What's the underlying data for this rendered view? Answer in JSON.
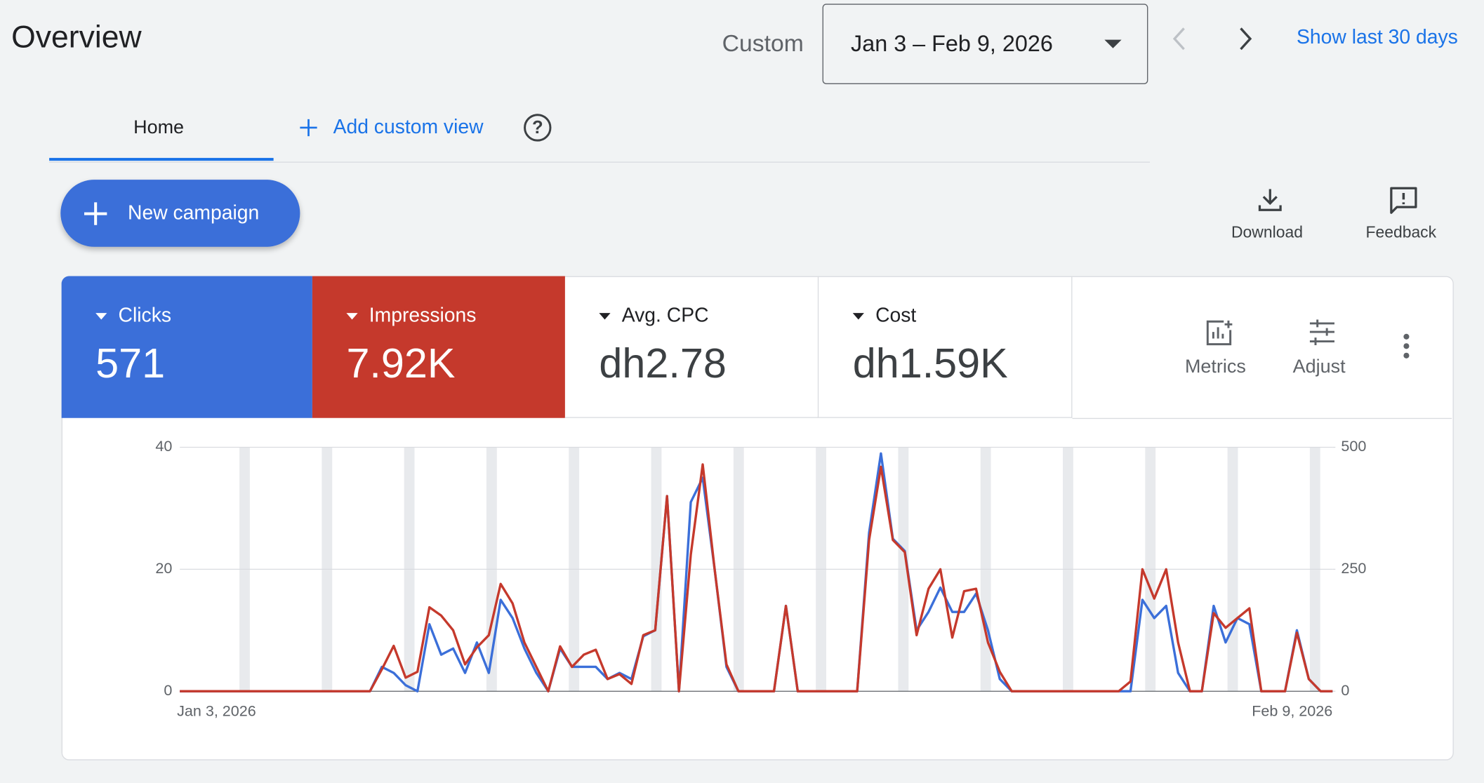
{
  "header": {
    "title": "Overview",
    "range_label": "Custom",
    "date_range": "Jan 3 – Feb 9, 2026",
    "show_last": "Show last 30 days"
  },
  "tabs": {
    "home": "Home",
    "add": "Add custom view"
  },
  "actions": {
    "new_campaign": "New campaign",
    "download": "Download",
    "feedback": "Feedback"
  },
  "scorecards": [
    {
      "label": "Clicks",
      "value": "571"
    },
    {
      "label": "Impressions",
      "value": "7.92K"
    },
    {
      "label": "Avg. CPC",
      "value": "dh2.78"
    },
    {
      "label": "Cost",
      "value": "dh1.59K"
    }
  ],
  "tools": {
    "metrics": "Metrics",
    "adjust": "Adjust"
  },
  "chart_data": {
    "type": "line",
    "categories": [
      "Jan 3, 2026",
      null,
      null,
      null,
      null,
      null,
      null,
      null,
      null,
      null,
      null,
      null,
      null,
      null,
      null,
      null,
      null,
      null,
      null,
      null,
      null,
      null,
      null,
      null,
      null,
      null,
      null,
      null,
      null,
      null,
      null,
      null,
      null,
      null,
      null,
      null,
      null,
      null,
      null,
      null,
      null,
      null,
      null,
      null,
      null,
      null,
      null,
      null,
      null,
      null,
      null,
      null,
      null,
      null,
      null,
      null,
      null,
      null,
      null,
      null,
      null,
      null,
      null,
      null,
      null,
      null,
      null,
      null,
      null,
      null,
      null,
      null,
      null,
      null,
      null,
      null,
      null,
      null,
      null,
      null,
      null,
      null,
      null,
      null,
      null,
      null,
      null,
      null,
      null,
      null,
      null,
      null,
      null,
      null,
      null,
      null,
      null,
      "Feb 9, 2026"
    ],
    "series": [
      {
        "name": "Clicks",
        "color": "#3b6fd9",
        "axis": "y",
        "values": [
          0,
          0,
          0,
          0,
          0,
          0,
          0,
          0,
          0,
          0,
          0,
          0,
          0,
          0,
          0,
          0,
          0,
          4,
          3,
          1,
          0,
          11,
          6,
          7,
          3,
          8,
          3,
          15,
          12,
          7,
          3,
          0,
          7,
          4,
          4,
          4,
          2,
          3,
          2,
          9,
          10,
          32,
          0,
          31,
          35,
          20,
          4,
          0,
          0,
          0,
          0,
          14,
          0,
          0,
          0,
          0,
          0,
          0,
          26,
          39,
          25,
          23,
          10,
          13,
          17,
          13,
          13,
          16,
          10,
          2,
          0,
          0,
          0,
          0,
          0,
          0,
          0,
          0,
          0,
          0,
          0,
          15,
          12,
          14,
          3,
          0,
          0,
          14,
          8,
          12,
          11,
          0,
          0,
          0,
          10,
          2,
          0,
          0
        ]
      },
      {
        "name": "Impressions",
        "color": "#c5392c",
        "axis": "y2",
        "values": [
          0,
          0,
          0,
          0,
          0,
          0,
          0,
          0,
          0,
          0,
          0,
          0,
          0,
          0,
          0,
          0,
          0,
          45,
          93,
          28,
          40,
          172,
          155,
          125,
          55,
          90,
          115,
          220,
          180,
          100,
          50,
          0,
          92,
          50,
          75,
          85,
          25,
          35,
          15,
          115,
          125,
          400,
          0,
          280,
          465,
          250,
          55,
          0,
          0,
          0,
          0,
          175,
          0,
          0,
          0,
          0,
          0,
          0,
          310,
          460,
          310,
          285,
          115,
          210,
          250,
          110,
          205,
          210,
          100,
          40,
          0,
          0,
          0,
          0,
          0,
          0,
          0,
          0,
          0,
          0,
          20,
          250,
          190,
          250,
          100,
          0,
          0,
          160,
          130,
          150,
          170,
          0,
          0,
          0,
          120,
          25,
          0,
          0
        ]
      }
    ],
    "ylim": [
      0,
      40
    ],
    "yticks": [
      0,
      20,
      40
    ],
    "y2lim": [
      0,
      500
    ],
    "y2ticks": [
      0,
      250,
      500
    ],
    "grid": true
  }
}
